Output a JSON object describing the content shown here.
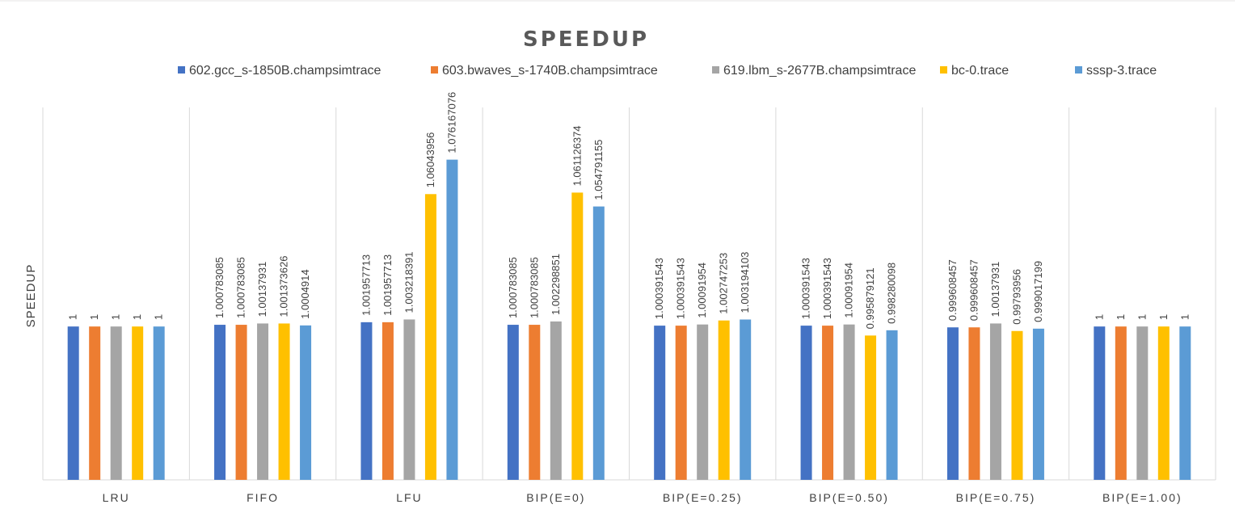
{
  "chart_data": {
    "type": "bar",
    "title": "SPEEDUP",
    "xlabel": "",
    "ylabel": "SPEEDUP",
    "legend_position": "top",
    "grid": false,
    "categories": [
      "LRU",
      "FIFO",
      "LFU",
      "BIP(E=0)",
      "BIP(E=0.25)",
      "BIP(E=0.50)",
      "BIP(E=0.75)",
      "BIP(E=1.00)"
    ],
    "series": [
      {
        "name": "602.gcc_s-1850B.champsimtrace",
        "color": "#4472C4",
        "values": [
          1,
          1.000783085,
          1.001957713,
          1.000783085,
          1.000391543,
          1.000391543,
          0.999608457,
          1
        ],
        "labels": [
          "1",
          "1.000783085",
          "1.001957713",
          "1.000783085",
          "1.000391543",
          "1.000391543",
          "0.999608457",
          "1"
        ]
      },
      {
        "name": "603.bwaves_s-1740B.champsimtrace",
        "color": "#ED7D31",
        "values": [
          1,
          1.000783085,
          1.001957713,
          1.000783085,
          1.000391543,
          1.000391543,
          0.999608457,
          1
        ],
        "labels": [
          "1",
          "1.000783085",
          "1.001957713",
          "1.000783085",
          "1.000391543",
          "1.000391543",
          "0.999608457",
          "1"
        ]
      },
      {
        "name": "619.lbm_s-2677B.champsimtrace",
        "color": "#A5A5A5",
        "values": [
          1,
          1.00137931,
          1.003218391,
          1.002298851,
          1.00091954,
          1.00091954,
          1.00137931,
          1
        ],
        "labels": [
          "1",
          "1.00137931",
          "1.003218391",
          "1.002298851",
          "1.00091954",
          "1.00091954",
          "1.00137931",
          "1"
        ]
      },
      {
        "name": "bc-0.trace",
        "color": "#FFC000",
        "values": [
          1,
          1.001373626,
          1.06043956,
          1.061126374,
          1.002747253,
          0.995879121,
          0.99793956,
          1
        ],
        "labels": [
          "1",
          "1.001373626",
          "1.06043956",
          "1.061126374",
          "1.002747253",
          "0.995879121",
          "0.99793956",
          "1"
        ]
      },
      {
        "name": "sssp-3.trace",
        "color": "#5B9BD5",
        "values": [
          1,
          1.0004914,
          1.076167076,
          1.054791155,
          1.003194103,
          0.998280098,
          0.999017199,
          1
        ],
        "labels": [
          "1",
          "1.0004914",
          "1.076167076",
          "1.054791155",
          "1.003194103",
          "0.998280098",
          "0.999017199",
          "1"
        ]
      }
    ],
    "ylim": [
      0.93,
      1.1
    ]
  },
  "colors": {
    "axis": "#D9D9D9",
    "text": "#404040",
    "title": "#595959"
  }
}
